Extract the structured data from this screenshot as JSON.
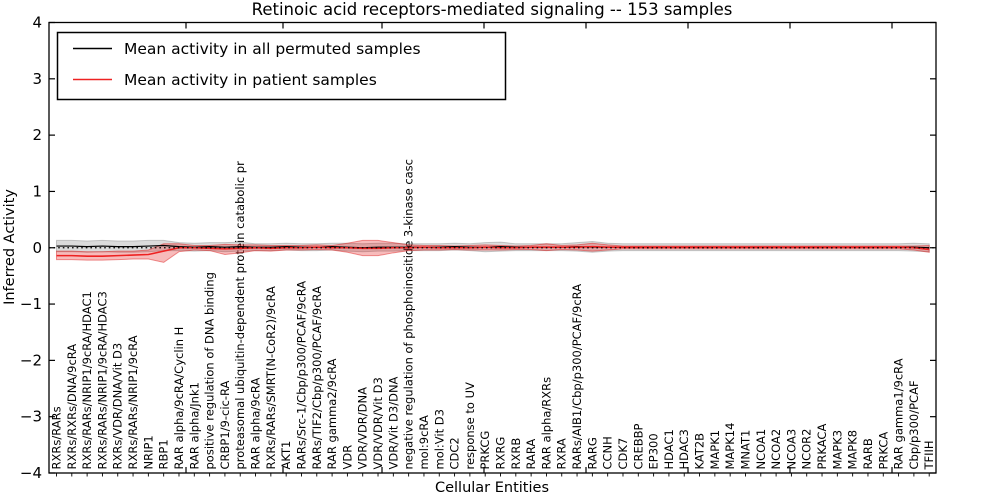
{
  "figure": {
    "title": "Retinoic acid receptors-mediated signaling -- 153 samples",
    "xlabel": "Cellular Entities",
    "ylabel": "Inferred Activity"
  },
  "legend": {
    "entries": [
      {
        "label": "Mean activity in all permuted samples",
        "color": "#000000"
      },
      {
        "label": "Mean activity in patient samples",
        "color": "#ee2222"
      }
    ]
  },
  "chart_data": {
    "type": "line",
    "title": "Retinoic acid receptors-mediated signaling -- 153 samples",
    "xlabel": "Cellular Entities",
    "ylabel": "Inferred Activity",
    "ylim": [
      -4,
      4
    ],
    "yticks": [
      4,
      3,
      2,
      1,
      0,
      -1,
      -2,
      -3,
      -4
    ],
    "ytick_labels": [
      "4",
      "3",
      "2",
      "1",
      "0",
      "−1",
      "−2",
      "−3",
      "−4"
    ],
    "zero_line": true,
    "grid": false,
    "legend_position": "upper-left",
    "categories": [
      "RXRs/RARs",
      "RXRs/RXRs/DNA/9cRA",
      "RXRs/RARs/NRIP1/9cRA/HDAC1",
      "RXRs/RARs/NRIP1/9cRA/HDAC3",
      "RXRs/VDR/DNA/Vit D3",
      "RXRs/RARs/NRIP1/9cRA",
      "NRIP1",
      "RBP1",
      "RAR alpha/9cRA/Cyclin H",
      "RAR alpha/Jnk1",
      "positive regulation of DNA binding",
      "CRBP1/9-cic-RA",
      "proteasomal ubiquitin-dependent protein catabolic pr",
      "RAR alpha/9cRA",
      "RXRs/RARs/SMRT(N-CoR2)/9cRA",
      "AKT1",
      "RARs/Src-1/Cbp/p300/PCAF/9cRA",
      "RARs/TIF2/Cbp/p300/PCAF/9cRA",
      "RAR gamma2/9cRA",
      "VDR",
      "VDR/VDR/DNA",
      "VDR/VDR/Vit D3",
      "VDR/Vit D3/DNA",
      "negative regulation of phosphoinositide 3-kinase casc",
      "mol:9cRA",
      "mol:Vit D3",
      "CDC2",
      "response to UV",
      "PRKCG",
      "RXRG",
      "RXRB",
      "RARA",
      "RAR alpha/RXRs",
      "RXRA",
      "RARs/AIB1/Cbp/p300/PCAF/9cRA",
      "RARG",
      "CCNH",
      "CDK7",
      "CREBBP",
      "EP300",
      "HDAC1",
      "HDAC3",
      "KAT2B",
      "MAPK1",
      "MAPK14",
      "MNAT1",
      "NCOA1",
      "NCOA2",
      "NCOA3",
      "NCOR2",
      "PRKACA",
      "MAPK3",
      "MAPK8",
      "RARB",
      "PRKCA",
      "RAR gamma1/9cRA",
      "Cbp/p300/PCAF",
      "TFIIH"
    ],
    "series": [
      {
        "name": "Mean activity in all permuted samples",
        "color": "#000000",
        "band_fill": "rgba(90,90,90,0.22)",
        "band_edge": "rgba(90,90,90,0.30)",
        "values": [
          0.03,
          0.03,
          0.02,
          0.03,
          0.02,
          0.02,
          0.03,
          0.04,
          0.02,
          0.01,
          0.02,
          0.01,
          0.02,
          0.01,
          0.01,
          0.02,
          0.01,
          0.01,
          0.02,
          0.01,
          0.0,
          0.01,
          0.01,
          0.01,
          0.01,
          0.01,
          0.02,
          0.01,
          0.01,
          0.02,
          0.01,
          0.01,
          0.01,
          0.01,
          0.02,
          0.01,
          0.01,
          0.01,
          0.01,
          0.01,
          0.01,
          0.01,
          0.01,
          0.01,
          0.01,
          0.01,
          0.01,
          0.01,
          0.01,
          0.01,
          0.01,
          0.01,
          0.01,
          0.01,
          0.01,
          0.01,
          0.01,
          0.0
        ],
        "upper": [
          0.13,
          0.13,
          0.12,
          0.13,
          0.12,
          0.12,
          0.13,
          0.13,
          0.09,
          0.08,
          0.09,
          0.09,
          0.1,
          0.07,
          0.07,
          0.08,
          0.07,
          0.07,
          0.08,
          0.08,
          0.07,
          0.08,
          0.08,
          0.07,
          0.07,
          0.07,
          0.08,
          0.07,
          0.09,
          0.1,
          0.07,
          0.07,
          0.07,
          0.07,
          0.09,
          0.11,
          0.08,
          0.07,
          0.07,
          0.07,
          0.07,
          0.07,
          0.07,
          0.07,
          0.07,
          0.07,
          0.07,
          0.07,
          0.07,
          0.07,
          0.07,
          0.07,
          0.07,
          0.07,
          0.07,
          0.07,
          0.08,
          0.07
        ],
        "lower": [
          -0.07,
          -0.07,
          -0.08,
          -0.07,
          -0.08,
          -0.08,
          -0.07,
          -0.05,
          -0.05,
          -0.06,
          -0.05,
          -0.07,
          -0.06,
          -0.05,
          -0.05,
          -0.04,
          -0.05,
          -0.05,
          -0.04,
          -0.06,
          -0.07,
          -0.06,
          -0.06,
          -0.05,
          -0.05,
          -0.05,
          -0.04,
          -0.05,
          -0.07,
          -0.06,
          -0.05,
          -0.05,
          -0.05,
          -0.05,
          -0.06,
          -0.08,
          -0.06,
          -0.05,
          -0.05,
          -0.05,
          -0.05,
          -0.05,
          -0.05,
          -0.05,
          -0.05,
          -0.05,
          -0.05,
          -0.05,
          -0.05,
          -0.05,
          -0.05,
          -0.05,
          -0.05,
          -0.05,
          -0.05,
          -0.05,
          -0.06,
          -0.07
        ]
      },
      {
        "name": "Mean activity in patient samples",
        "color": "#ee2222",
        "band_fill": "rgba(230,30,30,0.30)",
        "band_edge": "rgba(220,20,20,0.45)",
        "values": [
          -0.14,
          -0.14,
          -0.15,
          -0.15,
          -0.14,
          -0.13,
          -0.12,
          -0.06,
          0.0,
          0.0,
          -0.01,
          -0.02,
          -0.01,
          0.0,
          -0.01,
          0.0,
          0.0,
          0.01,
          0.0,
          0.0,
          -0.01,
          -0.01,
          0.0,
          0.0,
          0.01,
          0.0,
          0.0,
          0.0,
          0.01,
          0.0,
          0.0,
          0.01,
          0.01,
          0.01,
          0.01,
          0.02,
          0.01,
          0.01,
          0.01,
          0.01,
          0.01,
          0.01,
          0.01,
          0.01,
          0.01,
          0.01,
          0.01,
          0.01,
          0.01,
          0.01,
          0.01,
          0.01,
          0.01,
          0.01,
          0.01,
          0.01,
          0.0,
          -0.03
        ],
        "upper": [
          -0.06,
          -0.06,
          -0.07,
          -0.07,
          -0.06,
          -0.06,
          -0.04,
          0.07,
          0.07,
          0.04,
          0.04,
          0.06,
          0.05,
          0.05,
          0.04,
          0.04,
          0.04,
          0.05,
          0.04,
          0.08,
          0.13,
          0.13,
          0.09,
          0.05,
          0.04,
          0.04,
          0.03,
          0.04,
          0.05,
          0.04,
          0.03,
          0.04,
          0.07,
          0.04,
          0.05,
          0.08,
          0.05,
          0.03,
          0.03,
          0.03,
          0.03,
          0.03,
          0.03,
          0.03,
          0.03,
          0.03,
          0.03,
          0.03,
          0.03,
          0.03,
          0.03,
          0.03,
          0.03,
          0.03,
          0.03,
          0.03,
          0.03,
          0.04
        ],
        "lower": [
          -0.21,
          -0.21,
          -0.22,
          -0.22,
          -0.21,
          -0.2,
          -0.2,
          -0.26,
          -0.07,
          -0.04,
          -0.05,
          -0.12,
          -0.09,
          -0.05,
          -0.06,
          -0.04,
          -0.04,
          -0.03,
          -0.04,
          -0.08,
          -0.14,
          -0.14,
          -0.09,
          -0.05,
          -0.04,
          -0.04,
          -0.03,
          -0.04,
          -0.04,
          -0.04,
          -0.03,
          -0.03,
          -0.05,
          -0.03,
          -0.04,
          -0.06,
          -0.04,
          -0.02,
          -0.02,
          -0.02,
          -0.02,
          -0.02,
          -0.02,
          -0.02,
          -0.02,
          -0.02,
          -0.02,
          -0.02,
          -0.02,
          -0.02,
          -0.02,
          -0.02,
          -0.02,
          -0.02,
          -0.02,
          -0.02,
          -0.04,
          -0.08
        ]
      }
    ]
  }
}
